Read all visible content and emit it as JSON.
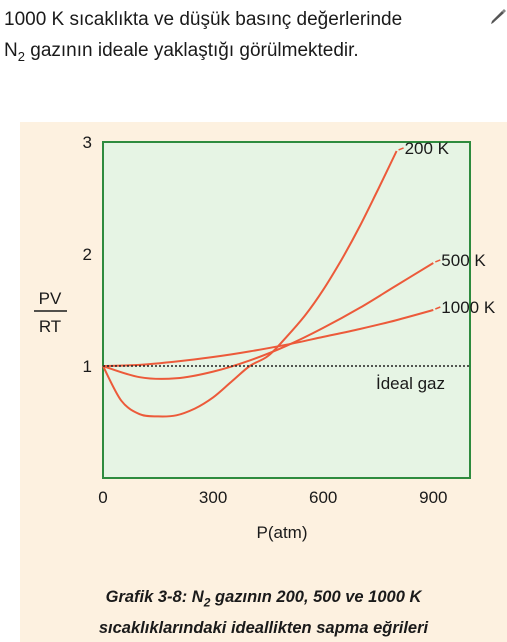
{
  "intro": {
    "line1": "1000 K sıcaklıkta ve düşük basınç değerlerinde",
    "line2_pre": "N",
    "line2_sub": "2",
    "line2_post": " gazının ideale yaklaştığı görülmektedir."
  },
  "icon": "pencil-icon",
  "chart_data": {
    "type": "line",
    "title": "",
    "xlabel": "P(atm)",
    "ylabel_numerator": "PV",
    "ylabel_denominator": "RT",
    "xlim": [
      0,
      1000
    ],
    "ylim": [
      0,
      3
    ],
    "x_ticks": [
      0,
      300,
      600,
      900
    ],
    "y_ticks": [
      1,
      2,
      3
    ],
    "grid": false,
    "colors": {
      "frame": "#2e8b3e",
      "plot_bg": "#e6f4e4",
      "figure_bg": "#fdf1e0",
      "curve": "#ec5a3a",
      "reference": "#222222"
    },
    "series": [
      {
        "name": "200 K",
        "x": [
          0,
          50,
          100,
          150,
          200,
          250,
          300,
          350,
          400,
          450,
          500,
          550,
          600,
          650,
          700,
          750,
          800
        ],
        "y": [
          1.0,
          0.69,
          0.57,
          0.55,
          0.56,
          0.62,
          0.72,
          0.86,
          1.0,
          1.09,
          1.26,
          1.45,
          1.68,
          1.95,
          2.25,
          2.58,
          2.92
        ]
      },
      {
        "name": "500 K",
        "x": [
          0,
          100,
          200,
          300,
          400,
          500,
          600,
          700,
          800,
          900
        ],
        "y": [
          1.0,
          0.9,
          0.89,
          0.95,
          1.05,
          1.18,
          1.34,
          1.52,
          1.72,
          1.92
        ]
      },
      {
        "name": "1000 K",
        "x": [
          0,
          100,
          200,
          300,
          400,
          500,
          600,
          700,
          800,
          900
        ],
        "y": [
          1.0,
          1.01,
          1.04,
          1.08,
          1.13,
          1.19,
          1.26,
          1.33,
          1.41,
          1.5
        ]
      },
      {
        "name": "İdeal gaz",
        "style": "dotted",
        "x": [
          0,
          1000
        ],
        "y": [
          1.0,
          1.0
        ]
      }
    ]
  },
  "caption": {
    "line1_pre": "Grafik 3-8: N",
    "line1_sub": "2",
    "line1_post": " gazının 200, 500 ve 1000 K",
    "line2": "sıcaklıklarındaki ideallikten sapma eğrileri"
  }
}
